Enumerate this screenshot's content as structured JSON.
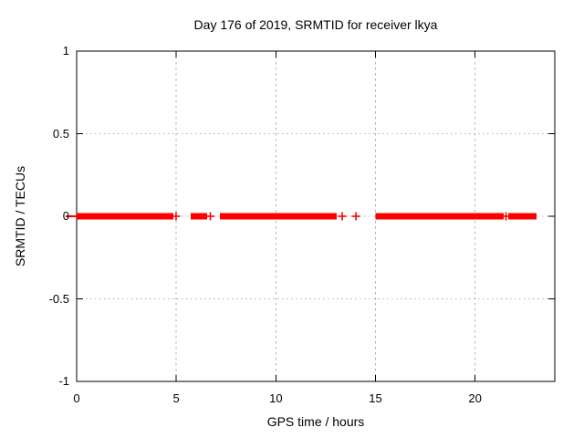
{
  "chart_data": {
    "type": "scatter",
    "title": "Day 176 of 2019, SRMTID for receiver lkya",
    "xlabel": "GPS time / hours",
    "ylabel": "SRMTID / TECUs",
    "xlim": [
      0,
      24
    ],
    "ylim": [
      -1,
      1
    ],
    "xticks": [
      0,
      5,
      10,
      15,
      20
    ],
    "yticks": [
      -1,
      -0.5,
      0,
      0.5,
      1
    ],
    "grid": true,
    "legend": "none",
    "marker": "plus",
    "series": [
      {
        "name": "SRMTID",
        "color": "#ff0000",
        "y_value": 0,
        "segments_hours": [
          [
            0,
            4.85
          ],
          [
            5.73,
            6.55
          ],
          [
            7.2,
            13.05
          ],
          [
            15.0,
            21.44
          ],
          [
            21.66,
            23.08
          ]
        ],
        "isolated_points_hours": [
          4.99,
          6.71,
          13.33,
          14.02,
          21.55
        ]
      }
    ],
    "decorations": {
      "zero_axis_dash_hours": [
        -0.55,
        0
      ]
    }
  },
  "colors": {
    "data": "#ff0000",
    "grid": "#b0b0b0",
    "axis": "#000000",
    "background": "#ffffff"
  }
}
